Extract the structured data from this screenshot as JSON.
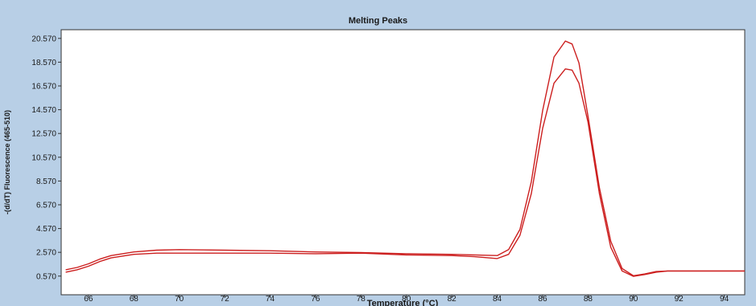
{
  "window": {
    "background": "#b8cfe6",
    "plot_background": "#ffffff"
  },
  "chart_data": {
    "type": "line",
    "title": "Melting Peaks",
    "xlabel": "Temperature (°C)",
    "ylabel": "-(d/dT) Fluorescence (465-510)",
    "xlim": [
      64.8,
      94.9
    ],
    "ylim": [
      -1.0,
      21.3
    ],
    "xticks": [
      66,
      68,
      70,
      72,
      74,
      76,
      78,
      80,
      82,
      84,
      86,
      88,
      90,
      92,
      94
    ],
    "yticks": [
      0.57,
      2.57,
      4.57,
      6.57,
      8.57,
      10.57,
      12.57,
      14.57,
      16.57,
      18.57,
      20.57
    ],
    "ytick_labels": [
      "0.570",
      "2.570",
      "4.570",
      "6.570",
      "8.570",
      "10.570",
      "12.570",
      "14.570",
      "16.570",
      "18.570",
      "20.570"
    ],
    "grid": false,
    "series": [
      {
        "color": "#cc1f1f",
        "x": [
          65,
          65.5,
          66,
          66.5,
          67,
          68,
          69,
          70,
          72,
          74,
          76,
          78,
          80,
          82,
          83,
          84,
          84.5,
          85,
          85.5,
          86,
          86.5,
          87,
          87.3,
          87.6,
          88,
          88.5,
          89,
          89.5,
          90,
          90.5,
          91,
          91.5,
          92,
          93,
          94,
          94.9
        ],
        "y": [
          1.1,
          1.3,
          1.6,
          2.0,
          2.3,
          2.6,
          2.75,
          2.8,
          2.75,
          2.7,
          2.6,
          2.55,
          2.45,
          2.4,
          2.35,
          2.3,
          2.8,
          4.5,
          8.5,
          14.5,
          19.0,
          20.35,
          20.1,
          18.5,
          14.0,
          8.0,
          3.5,
          1.2,
          0.6,
          0.75,
          0.95,
          1.0,
          1.0,
          1.0,
          1.0,
          1.0
        ]
      },
      {
        "color": "#cc1f1f",
        "x": [
          65,
          65.5,
          66,
          66.5,
          67,
          68,
          69,
          70,
          72,
          74,
          76,
          78,
          80,
          82,
          83,
          84,
          84.5,
          85,
          85.5,
          86,
          86.5,
          87,
          87.3,
          87.6,
          88,
          88.5,
          89,
          89.5,
          90,
          90.5,
          91,
          91.5,
          92,
          93,
          94,
          94.9
        ],
        "y": [
          0.9,
          1.1,
          1.4,
          1.8,
          2.1,
          2.4,
          2.5,
          2.5,
          2.5,
          2.5,
          2.45,
          2.5,
          2.35,
          2.3,
          2.2,
          2.05,
          2.4,
          4.0,
          7.5,
          13.0,
          16.8,
          18.0,
          17.9,
          16.8,
          13.5,
          7.5,
          3.0,
          1.0,
          0.55,
          0.7,
          0.9,
          1.0,
          1.0,
          1.0,
          1.0,
          1.0
        ]
      }
    ]
  }
}
